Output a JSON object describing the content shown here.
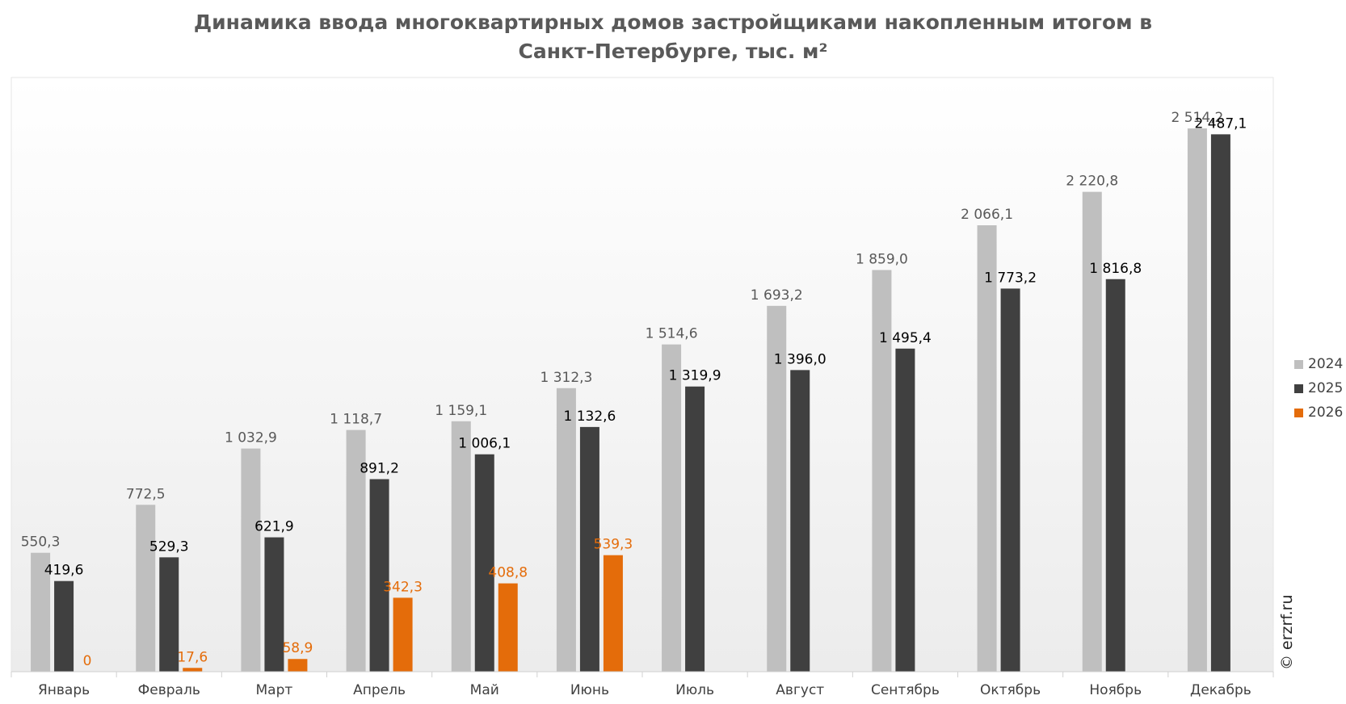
{
  "chart_data": {
    "type": "bar",
    "title_lines": [
      "Динамика ввода многоквартирных домов застройщиками накопленным итогом в",
      "Санкт-Петербурге, тыс. м²"
    ],
    "categories": [
      "Январь",
      "Февраль",
      "Март",
      "Апрель",
      "Май",
      "Июнь",
      "Июль",
      "Август",
      "Сентябрь",
      "Октябрь",
      "Ноябрь",
      "Декабрь"
    ],
    "series": [
      {
        "name": "2024",
        "color": "#bfbfbf",
        "label_color": "#595959",
        "values": [
          550.3,
          772.5,
          1032.9,
          1118.7,
          1159.1,
          1312.3,
          1514.6,
          1693.2,
          1859.0,
          2066.1,
          2220.8,
          2514.2
        ],
        "labels": [
          "550,3",
          "772,5",
          "1 032,9",
          "1 118,7",
          "1 159,1",
          "1 312,3",
          "1 514,6",
          "1 693,2",
          "1 859,0",
          "2 066,1",
          "2 220,8",
          "2 514,2"
        ]
      },
      {
        "name": "2025",
        "color": "#404040",
        "label_color": "#000000",
        "values": [
          419.6,
          529.3,
          621.9,
          891.2,
          1006.1,
          1132.6,
          1319.9,
          1396.0,
          1495.4,
          1773.2,
          1816.8,
          2487.1
        ],
        "labels": [
          "419,6",
          "529,3",
          "621,9",
          "891,2",
          "1 006,1",
          "1 132,6",
          "1 319,9",
          "1 396,0",
          "1 495,4",
          "1 773,2",
          "1 816,8",
          "2 487,1"
        ]
      },
      {
        "name": "2026",
        "color": "#e46c0a",
        "label_color": "#e46c0a",
        "values": [
          0,
          17.6,
          58.9,
          342.3,
          408.8,
          539.3,
          null,
          null,
          null,
          null,
          null,
          null
        ],
        "labels": [
          "0",
          "17,6",
          "58,9",
          "342,3",
          "408,8",
          "539,3",
          null,
          null,
          null,
          null,
          null,
          null
        ]
      }
    ],
    "ylim": [
      0,
      2750
    ],
    "grid": false,
    "legend_position": "right"
  },
  "watermark": "© erzrf.ru"
}
